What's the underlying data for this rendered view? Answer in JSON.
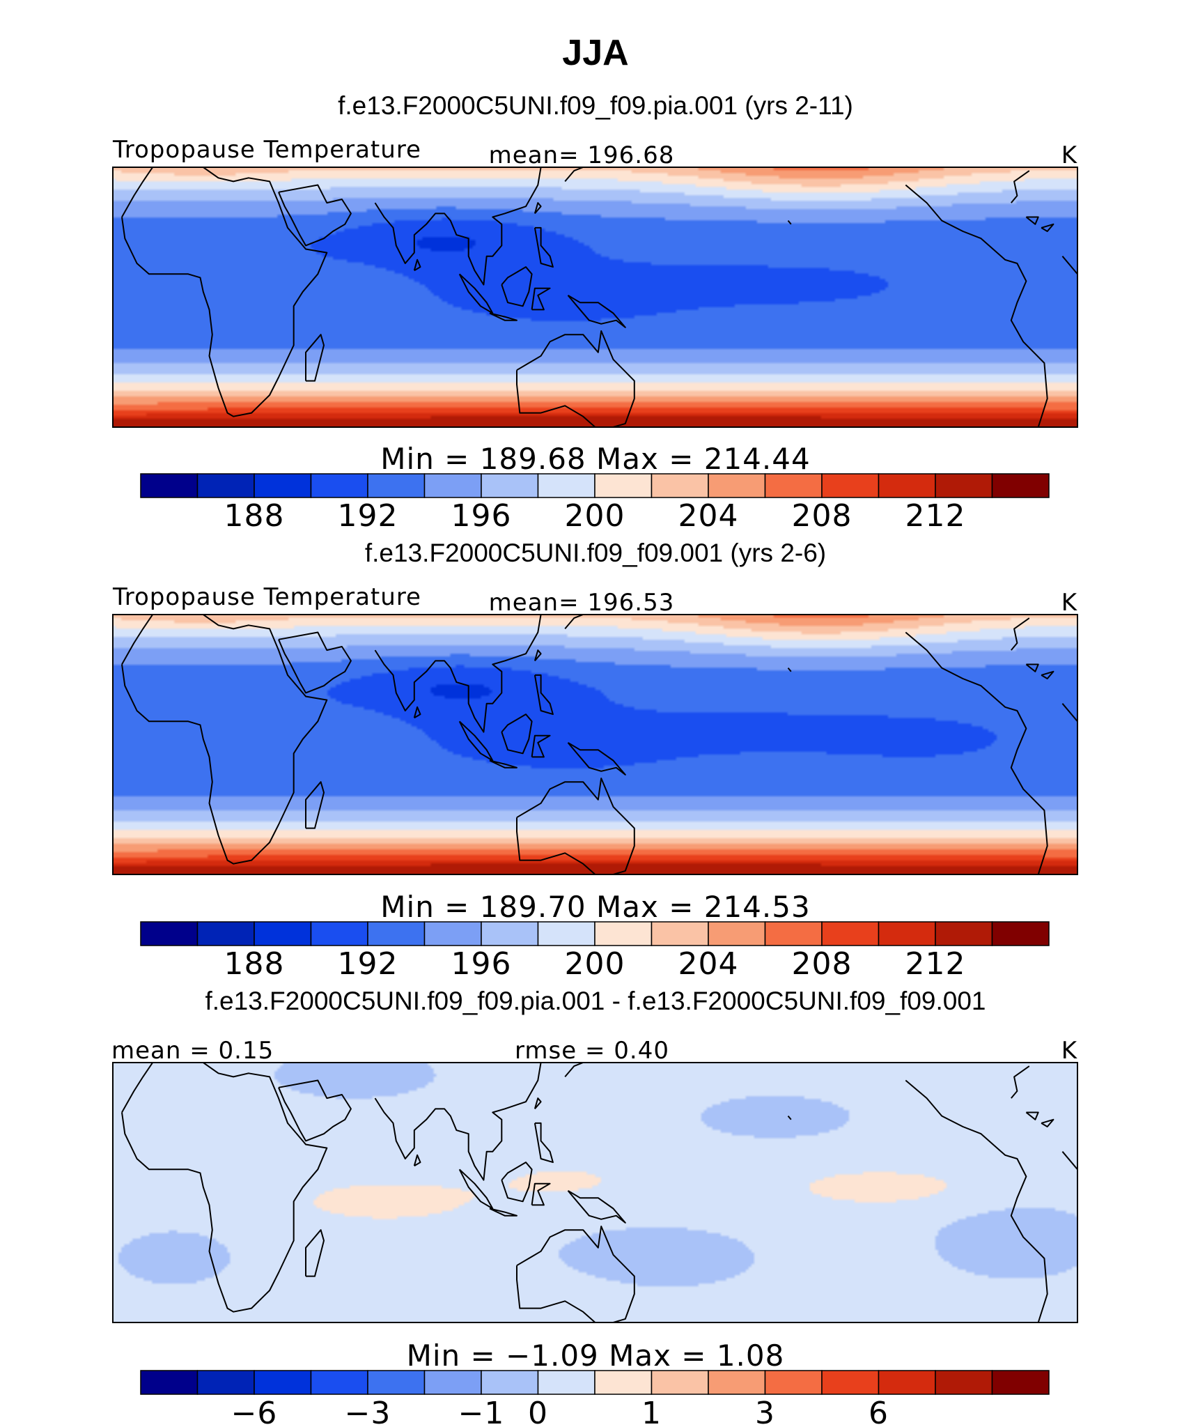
{
  "title": "JJA",
  "chart_data": [
    {
      "type": "heatmap",
      "subtitle": "f.e13.F2000C5UNI.f09_f09.pia.001 (yrs 2-11)",
      "left_label": "Tropopause Temperature",
      "center_label": "mean=  196.68",
      "units": "K",
      "minmax_label": "Min  =  189.68  Max  =  214.44",
      "variable": "Tropopause Temperature",
      "mean": 196.68,
      "min": 189.68,
      "max": 214.44,
      "colorbar": {
        "levels": [
          186,
          188,
          190,
          192,
          194,
          196,
          198,
          200,
          202,
          204,
          206,
          208,
          210,
          212
        ],
        "tick_values": [
          188,
          192,
          196,
          200,
          204,
          208,
          212
        ],
        "tick_labels": [
          "188",
          "192",
          "196",
          "200",
          "204",
          "208",
          "212"
        ]
      },
      "field": {
        "equator_value": 192.5,
        "north_edge": 208,
        "south_edge": 214,
        "cold_core_lon": 90,
        "cold_core_lat": 15,
        "cold_core_value": 189.7,
        "warm_pacific_north": 210
      }
    },
    {
      "type": "heatmap",
      "subtitle": "f.e13.F2000C5UNI.f09_f09.001 (yrs 2-6)",
      "left_label": "Tropopause Temperature",
      "center_label": "mean=  196.53",
      "units": "K",
      "minmax_label": "Min  =  189.70  Max  =  214.53",
      "variable": "Tropopause Temperature",
      "mean": 196.53,
      "min": 189.7,
      "max": 214.53,
      "colorbar": {
        "levels": [
          186,
          188,
          190,
          192,
          194,
          196,
          198,
          200,
          202,
          204,
          206,
          208,
          210,
          212
        ],
        "tick_values": [
          188,
          192,
          196,
          200,
          204,
          208,
          212
        ],
        "tick_labels": [
          "188",
          "192",
          "196",
          "200",
          "204",
          "208",
          "212"
        ]
      },
      "field": {
        "equator_value": 192.5,
        "north_edge": 208,
        "south_edge": 214,
        "cold_core_lon": 95,
        "cold_core_lat": 15,
        "cold_core_value": 189.7,
        "warm_pacific_north": 210
      }
    },
    {
      "type": "heatmap",
      "subtitle": "f.e13.F2000C5UNI.f09_f09.pia.001 - f.e13.F2000C5UNI.f09_f09.001",
      "left_label": "mean =    0.15",
      "center_label": "rmse =    0.40",
      "units": "K",
      "minmax_label": "Min  =   −1.09  Max  =    1.08",
      "mean": 0.15,
      "rmse": 0.4,
      "min": -1.09,
      "max": 1.08,
      "colorbar": {
        "levels": [
          -8,
          -6,
          -4,
          -3,
          -2,
          -1,
          0,
          0.5,
          1,
          2,
          3,
          4,
          6,
          8
        ],
        "tick_values": [
          -6,
          -3,
          -1,
          0,
          1,
          3,
          6
        ],
        "tick_labels": [
          "−6",
          "−3",
          "−1",
          "0",
          "1",
          "3",
          "6"
        ]
      }
    }
  ],
  "colors": {
    "palette": [
      "#00008b",
      "#0023b6",
      "#0032db",
      "#1a4ef0",
      "#3d72f0",
      "#7c9ff5",
      "#a9c2f8",
      "#d5e3fa",
      "#fde4d3",
      "#fac3a6",
      "#f79c74",
      "#f46d43",
      "#e8401c",
      "#d42b0e",
      "#b01a06",
      "#800000"
    ],
    "coast": "#000000"
  }
}
